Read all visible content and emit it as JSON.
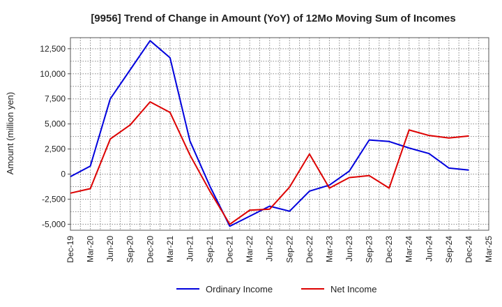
{
  "chart_data": {
    "type": "line",
    "title": "[9956]  Trend of Change in Amount (YoY) of 12Mo Moving Sum of Incomes",
    "xlabel": "",
    "ylabel": "Amount (million yen)",
    "ylim": [
      -5600,
      13600
    ],
    "yticks": [
      -5000,
      -2500,
      0,
      2500,
      5000,
      7500,
      10000,
      12500
    ],
    "ytick_labels": [
      "-5,000",
      "-2,500",
      "0",
      "2,500",
      "5,000",
      "7,500",
      "10,000",
      "12,500"
    ],
    "categories": [
      "Dec-19",
      "Mar-20",
      "Jun-20",
      "Sep-20",
      "Dec-20",
      "Mar-21",
      "Jun-21",
      "Sep-21",
      "Dec-21",
      "Mar-22",
      "Jun-22",
      "Sep-22",
      "Dec-22",
      "Mar-23",
      "Jun-23",
      "Sep-23",
      "Dec-23",
      "Mar-24",
      "Jun-24",
      "Sep-24",
      "Dec-24",
      "Mar-25"
    ],
    "grid": true,
    "legend_position": "bottom-center",
    "series": [
      {
        "name": "Ordinary Income",
        "color": "#0000dd",
        "values": [
          -250,
          800,
          7500,
          10400,
          13300,
          11600,
          3300,
          -1200,
          -5200,
          -4200,
          -3200,
          -3700,
          -1700,
          -1100,
          300,
          3400,
          3250,
          2600,
          2050,
          600,
          400,
          null
        ]
      },
      {
        "name": "Net Income",
        "color": "#dd0000",
        "values": [
          -1900,
          -1450,
          3500,
          4900,
          7200,
          6150,
          1900,
          -1700,
          -5000,
          -3600,
          -3500,
          -1300,
          2000,
          -1400,
          -350,
          -150,
          -1400,
          4400,
          3850,
          3600,
          3800,
          null
        ]
      }
    ]
  }
}
